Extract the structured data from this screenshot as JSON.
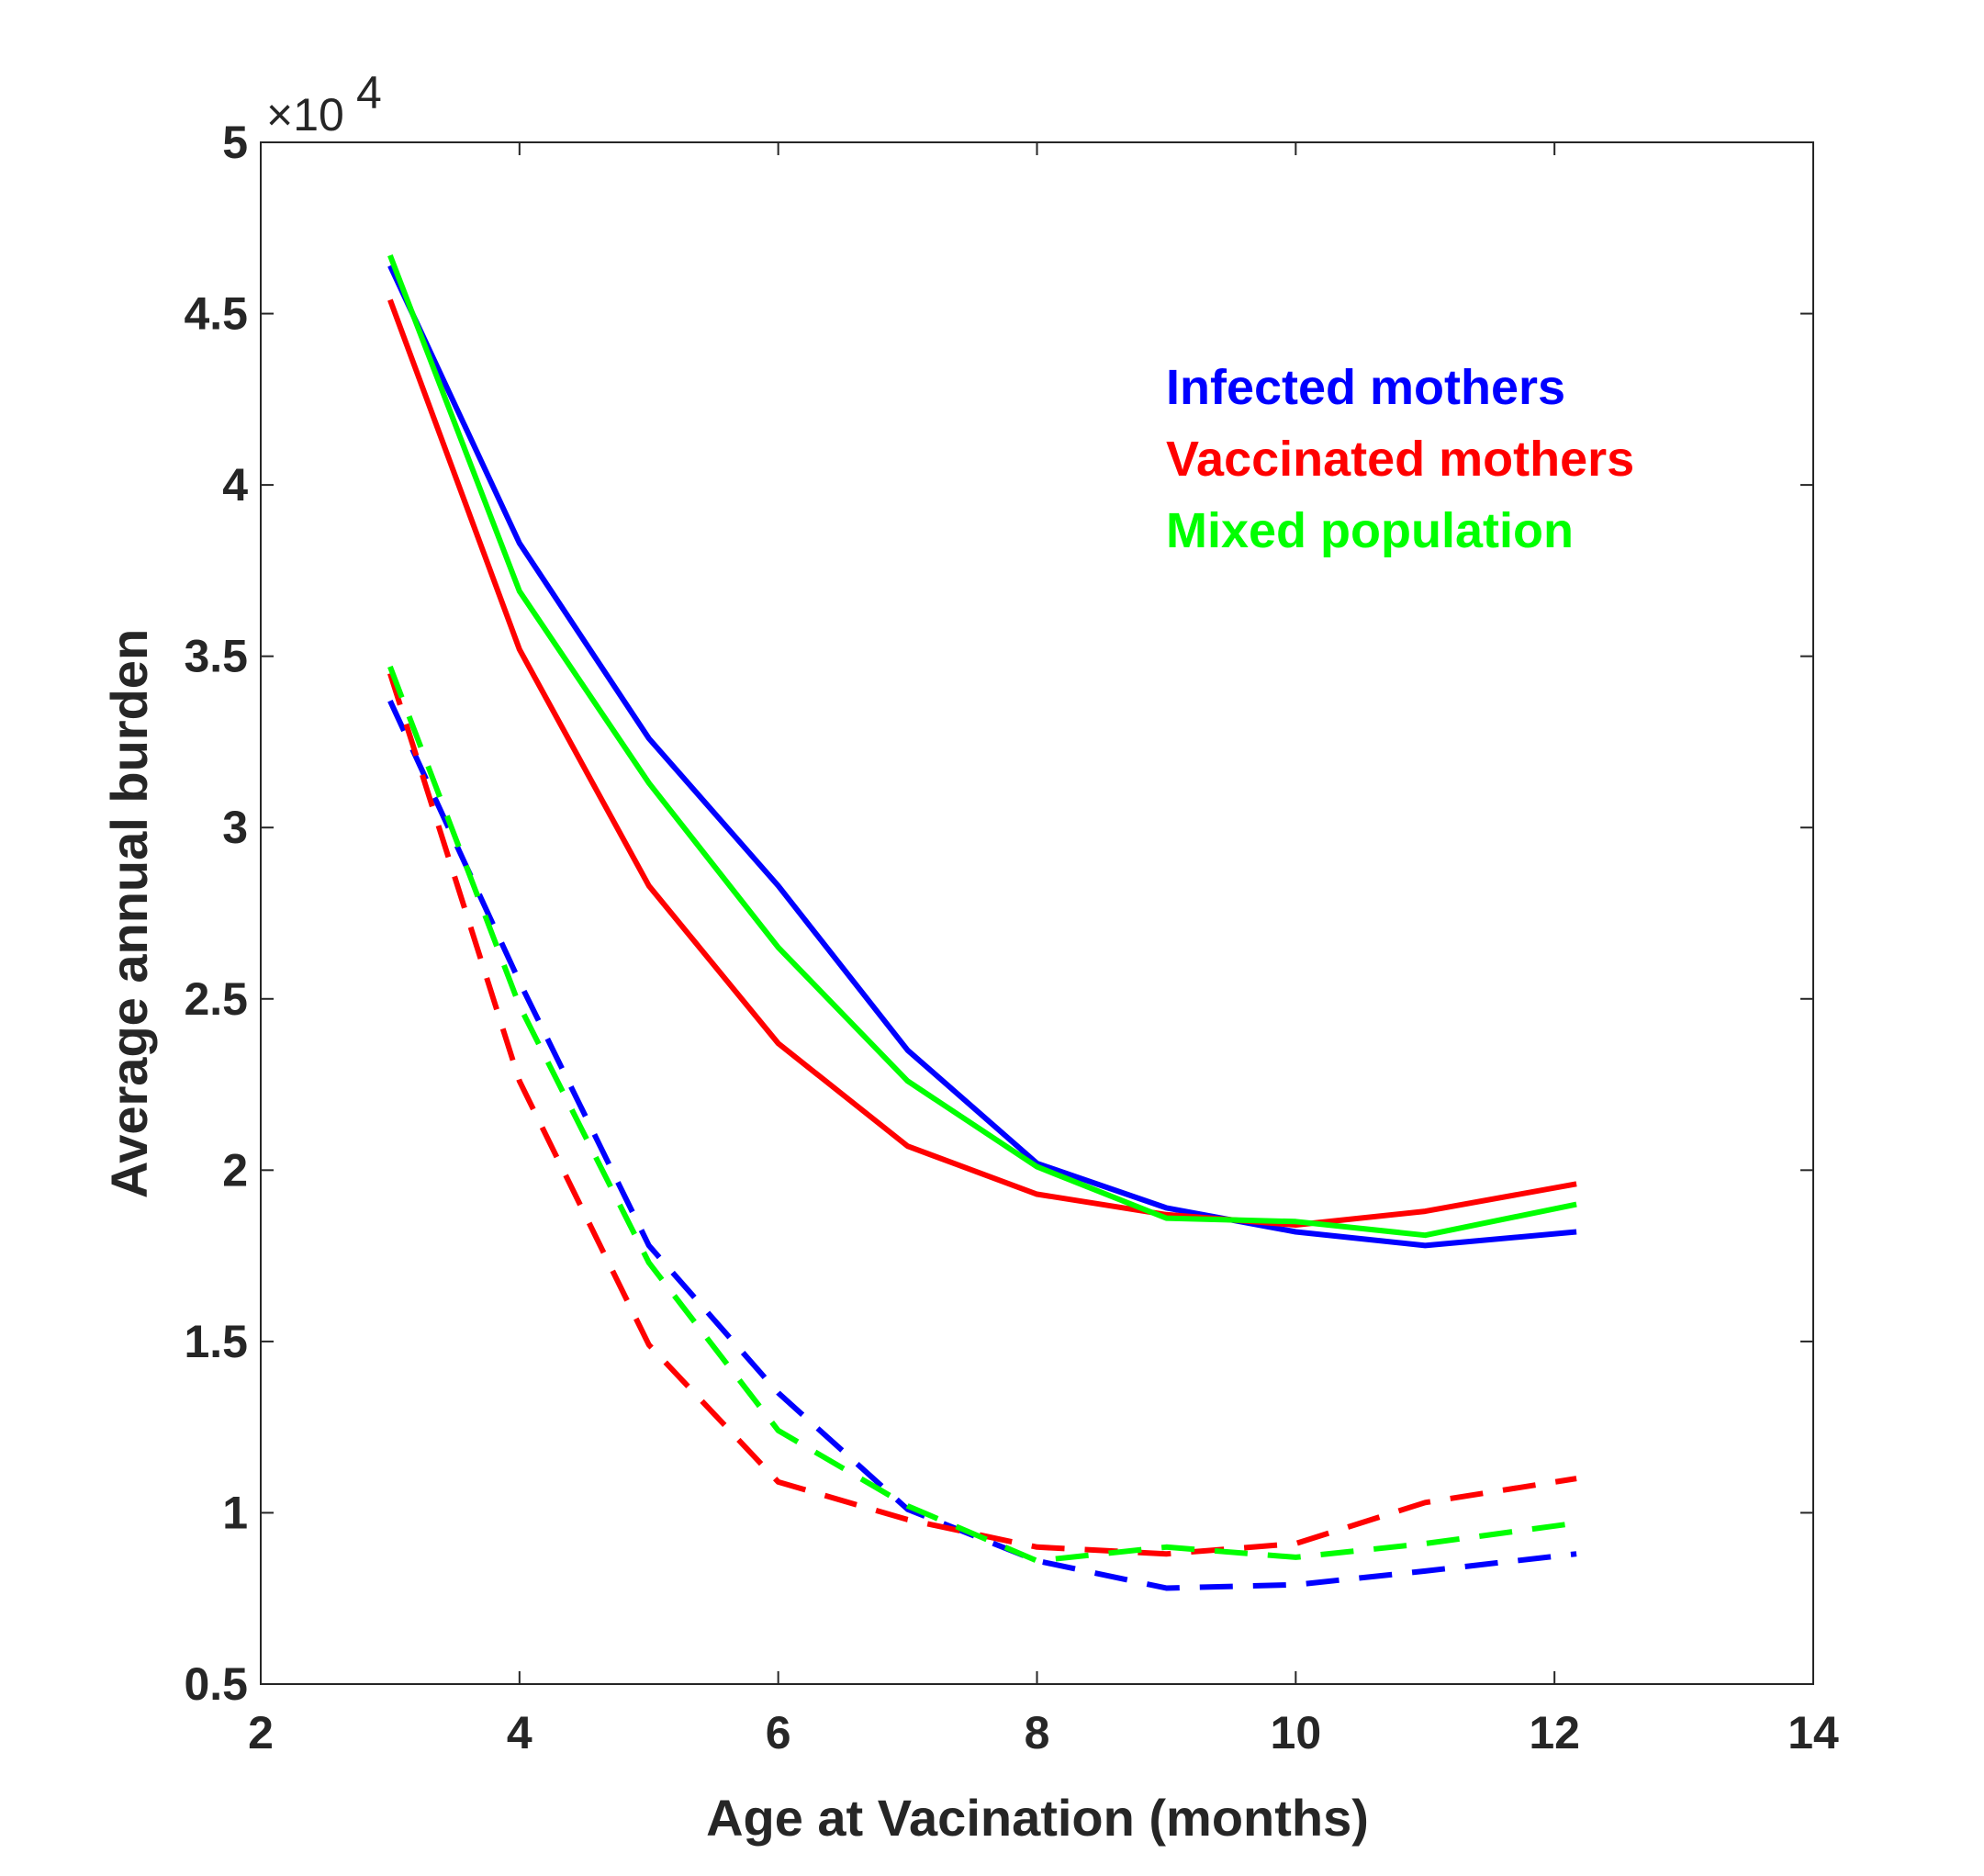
{
  "chart_data": {
    "type": "line",
    "xlabel": "Age at Vacination (months)",
    "ylabel": "Average annual burden",
    "exponent_base": "×10",
    "exponent_power": "4",
    "xlim": [
      2,
      14
    ],
    "ylim": [
      0.5,
      5
    ],
    "xticks": [
      "2",
      "4",
      "6",
      "8",
      "10",
      "12",
      "14"
    ],
    "yticks": [
      "0.5",
      "1",
      "1.5",
      "2",
      "2.5",
      "3",
      "3.5",
      "4",
      "4.5",
      "5"
    ],
    "grid": false,
    "legend_placement": "top-right",
    "legend": [
      {
        "label": "Infected mothers",
        "color": "#0000ff"
      },
      {
        "label": "Vaccinated mothers",
        "color": "#ff0000"
      },
      {
        "label": "Mixed population",
        "color": "#00ff00"
      }
    ],
    "series": [
      {
        "color": "#0000ff",
        "style": "solid",
        "x": [
          3,
          4,
          5,
          6,
          7,
          8,
          9,
          10,
          11,
          12.17
        ],
        "y": [
          4.64,
          3.83,
          3.26,
          2.83,
          2.35,
          2.02,
          1.89,
          1.82,
          1.78,
          1.82
        ]
      },
      {
        "color": "#ff0000",
        "style": "solid",
        "x": [
          3,
          4,
          5,
          6,
          7,
          8,
          9,
          10,
          11,
          12.17
        ],
        "y": [
          4.54,
          3.52,
          2.83,
          2.37,
          2.07,
          1.93,
          1.87,
          1.84,
          1.88,
          1.96
        ]
      },
      {
        "color": "#00ff00",
        "style": "solid",
        "x": [
          3,
          4,
          5,
          6,
          7,
          8,
          9,
          10,
          11,
          12.17
        ],
        "y": [
          4.67,
          3.69,
          3.13,
          2.65,
          2.26,
          2.01,
          1.86,
          1.85,
          1.81,
          1.9
        ]
      },
      {
        "color": "#0000ff",
        "style": "dashed",
        "x": [
          3,
          4,
          5,
          6,
          7,
          8,
          9,
          10,
          11,
          12.17
        ],
        "y": [
          3.37,
          2.55,
          1.78,
          1.35,
          1.01,
          0.86,
          0.78,
          0.79,
          0.83,
          0.88
        ]
      },
      {
        "color": "#ff0000",
        "style": "dashed",
        "x": [
          3,
          4,
          5,
          6,
          7,
          8,
          9,
          10,
          11,
          12.17
        ],
        "y": [
          3.45,
          2.26,
          1.49,
          1.09,
          0.98,
          0.9,
          0.88,
          0.91,
          1.03,
          1.1
        ]
      },
      {
        "color": "#00ff00",
        "style": "dashed",
        "x": [
          3,
          4,
          5,
          6,
          7,
          8,
          9,
          10,
          11,
          12.17
        ],
        "y": [
          3.47,
          2.48,
          1.73,
          1.24,
          1.02,
          0.86,
          0.9,
          0.87,
          0.91,
          0.97
        ]
      }
    ]
  }
}
